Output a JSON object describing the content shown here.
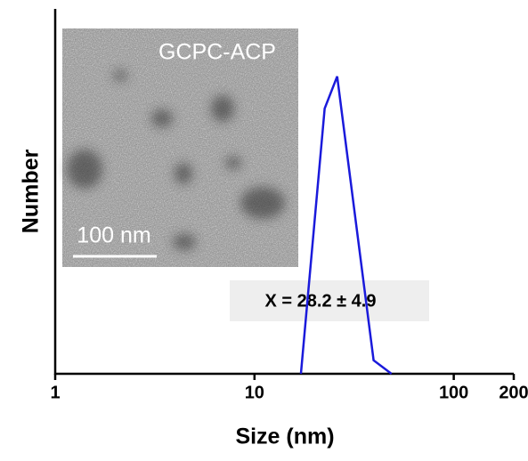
{
  "chart_data": {
    "type": "line",
    "x_label": "Size (nm)",
    "y_label": "Number",
    "xscale": "log",
    "xlim": [
      1,
      200
    ],
    "xticks": [
      1,
      10,
      100,
      200
    ],
    "ylim": [
      0,
      100
    ],
    "series": [
      {
        "name": "GCPC-ACP",
        "color": "#1a1adb",
        "x": [
          17.1,
          22.5,
          26.0,
          39.6,
          48.7
        ],
        "values": [
          0,
          72.7,
          81.5,
          3.7,
          0
        ]
      }
    ],
    "inset": {
      "label": "GCPC-ACP",
      "scale_bar": "100 nm"
    },
    "annotation": "X = 28.2 ± 4.9"
  }
}
